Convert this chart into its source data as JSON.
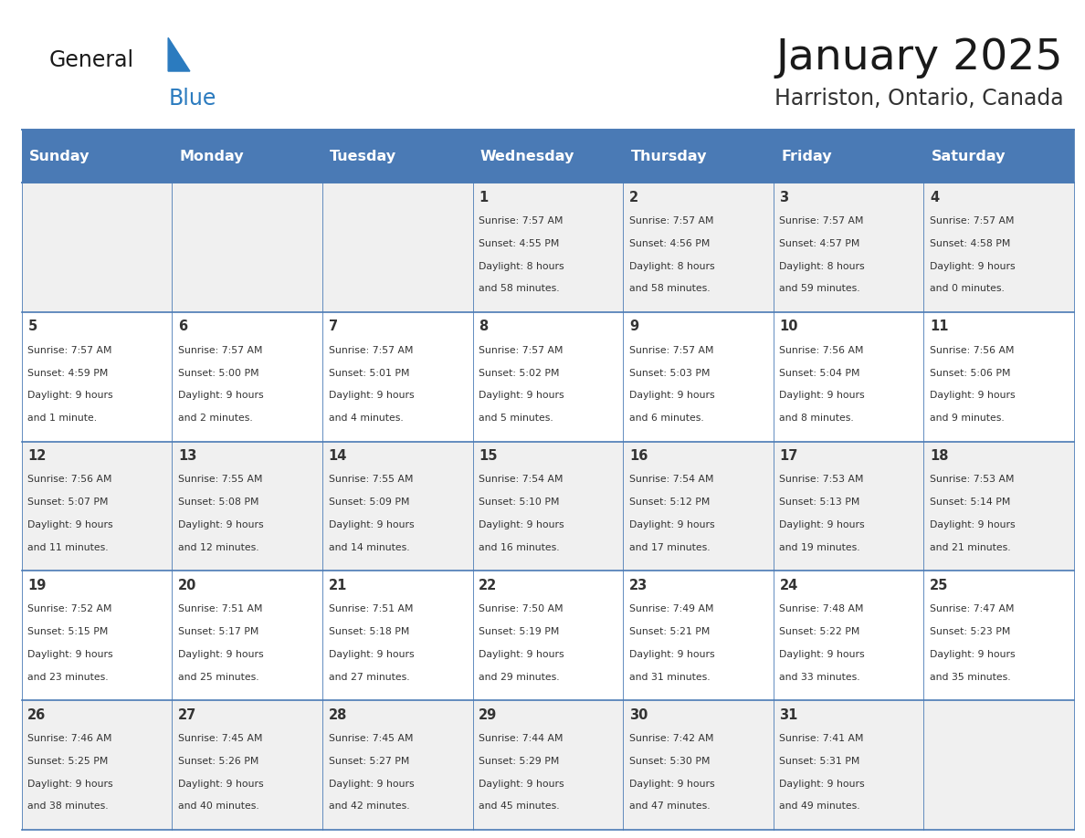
{
  "title": "January 2025",
  "subtitle": "Harriston, Ontario, Canada",
  "header_color": "#4a7ab5",
  "header_text_color": "#ffffff",
  "days_of_week": [
    "Sunday",
    "Monday",
    "Tuesday",
    "Wednesday",
    "Thursday",
    "Friday",
    "Saturday"
  ],
  "grid_line_color": "#4a7ab5",
  "cell_bg_row0": "#f0f0f0",
  "cell_bg_row1": "#ffffff",
  "day_number_color": "#333333",
  "text_color": "#333333",
  "calendar_data": [
    [
      null,
      null,
      null,
      {
        "day": "1",
        "sunrise": "7:57 AM",
        "sunset": "4:55 PM",
        "daylight_h": "8 hours",
        "daylight_m": "and 58 minutes."
      },
      {
        "day": "2",
        "sunrise": "7:57 AM",
        "sunset": "4:56 PM",
        "daylight_h": "8 hours",
        "daylight_m": "and 58 minutes."
      },
      {
        "day": "3",
        "sunrise": "7:57 AM",
        "sunset": "4:57 PM",
        "daylight_h": "8 hours",
        "daylight_m": "and 59 minutes."
      },
      {
        "day": "4",
        "sunrise": "7:57 AM",
        "sunset": "4:58 PM",
        "daylight_h": "9 hours",
        "daylight_m": "and 0 minutes."
      }
    ],
    [
      {
        "day": "5",
        "sunrise": "7:57 AM",
        "sunset": "4:59 PM",
        "daylight_h": "9 hours",
        "daylight_m": "and 1 minute."
      },
      {
        "day": "6",
        "sunrise": "7:57 AM",
        "sunset": "5:00 PM",
        "daylight_h": "9 hours",
        "daylight_m": "and 2 minutes."
      },
      {
        "day": "7",
        "sunrise": "7:57 AM",
        "sunset": "5:01 PM",
        "daylight_h": "9 hours",
        "daylight_m": "and 4 minutes."
      },
      {
        "day": "8",
        "sunrise": "7:57 AM",
        "sunset": "5:02 PM",
        "daylight_h": "9 hours",
        "daylight_m": "and 5 minutes."
      },
      {
        "day": "9",
        "sunrise": "7:57 AM",
        "sunset": "5:03 PM",
        "daylight_h": "9 hours",
        "daylight_m": "and 6 minutes."
      },
      {
        "day": "10",
        "sunrise": "7:56 AM",
        "sunset": "5:04 PM",
        "daylight_h": "9 hours",
        "daylight_m": "and 8 minutes."
      },
      {
        "day": "11",
        "sunrise": "7:56 AM",
        "sunset": "5:06 PM",
        "daylight_h": "9 hours",
        "daylight_m": "and 9 minutes."
      }
    ],
    [
      {
        "day": "12",
        "sunrise": "7:56 AM",
        "sunset": "5:07 PM",
        "daylight_h": "9 hours",
        "daylight_m": "and 11 minutes."
      },
      {
        "day": "13",
        "sunrise": "7:55 AM",
        "sunset": "5:08 PM",
        "daylight_h": "9 hours",
        "daylight_m": "and 12 minutes."
      },
      {
        "day": "14",
        "sunrise": "7:55 AM",
        "sunset": "5:09 PM",
        "daylight_h": "9 hours",
        "daylight_m": "and 14 minutes."
      },
      {
        "day": "15",
        "sunrise": "7:54 AM",
        "sunset": "5:10 PM",
        "daylight_h": "9 hours",
        "daylight_m": "and 16 minutes."
      },
      {
        "day": "16",
        "sunrise": "7:54 AM",
        "sunset": "5:12 PM",
        "daylight_h": "9 hours",
        "daylight_m": "and 17 minutes."
      },
      {
        "day": "17",
        "sunrise": "7:53 AM",
        "sunset": "5:13 PM",
        "daylight_h": "9 hours",
        "daylight_m": "and 19 minutes."
      },
      {
        "day": "18",
        "sunrise": "7:53 AM",
        "sunset": "5:14 PM",
        "daylight_h": "9 hours",
        "daylight_m": "and 21 minutes."
      }
    ],
    [
      {
        "day": "19",
        "sunrise": "7:52 AM",
        "sunset": "5:15 PM",
        "daylight_h": "9 hours",
        "daylight_m": "and 23 minutes."
      },
      {
        "day": "20",
        "sunrise": "7:51 AM",
        "sunset": "5:17 PM",
        "daylight_h": "9 hours",
        "daylight_m": "and 25 minutes."
      },
      {
        "day": "21",
        "sunrise": "7:51 AM",
        "sunset": "5:18 PM",
        "daylight_h": "9 hours",
        "daylight_m": "and 27 minutes."
      },
      {
        "day": "22",
        "sunrise": "7:50 AM",
        "sunset": "5:19 PM",
        "daylight_h": "9 hours",
        "daylight_m": "and 29 minutes."
      },
      {
        "day": "23",
        "sunrise": "7:49 AM",
        "sunset": "5:21 PM",
        "daylight_h": "9 hours",
        "daylight_m": "and 31 minutes."
      },
      {
        "day": "24",
        "sunrise": "7:48 AM",
        "sunset": "5:22 PM",
        "daylight_h": "9 hours",
        "daylight_m": "and 33 minutes."
      },
      {
        "day": "25",
        "sunrise": "7:47 AM",
        "sunset": "5:23 PM",
        "daylight_h": "9 hours",
        "daylight_m": "and 35 minutes."
      }
    ],
    [
      {
        "day": "26",
        "sunrise": "7:46 AM",
        "sunset": "5:25 PM",
        "daylight_h": "9 hours",
        "daylight_m": "and 38 minutes."
      },
      {
        "day": "27",
        "sunrise": "7:45 AM",
        "sunset": "5:26 PM",
        "daylight_h": "9 hours",
        "daylight_m": "and 40 minutes."
      },
      {
        "day": "28",
        "sunrise": "7:45 AM",
        "sunset": "5:27 PM",
        "daylight_h": "9 hours",
        "daylight_m": "and 42 minutes."
      },
      {
        "day": "29",
        "sunrise": "7:44 AM",
        "sunset": "5:29 PM",
        "daylight_h": "9 hours",
        "daylight_m": "and 45 minutes."
      },
      {
        "day": "30",
        "sunrise": "7:42 AM",
        "sunset": "5:30 PM",
        "daylight_h": "9 hours",
        "daylight_m": "and 47 minutes."
      },
      {
        "day": "31",
        "sunrise": "7:41 AM",
        "sunset": "5:31 PM",
        "daylight_h": "9 hours",
        "daylight_m": "and 49 minutes."
      },
      null
    ]
  ],
  "logo_general_color": "#1a1a1a",
  "logo_blue_color": "#2b7bbf"
}
